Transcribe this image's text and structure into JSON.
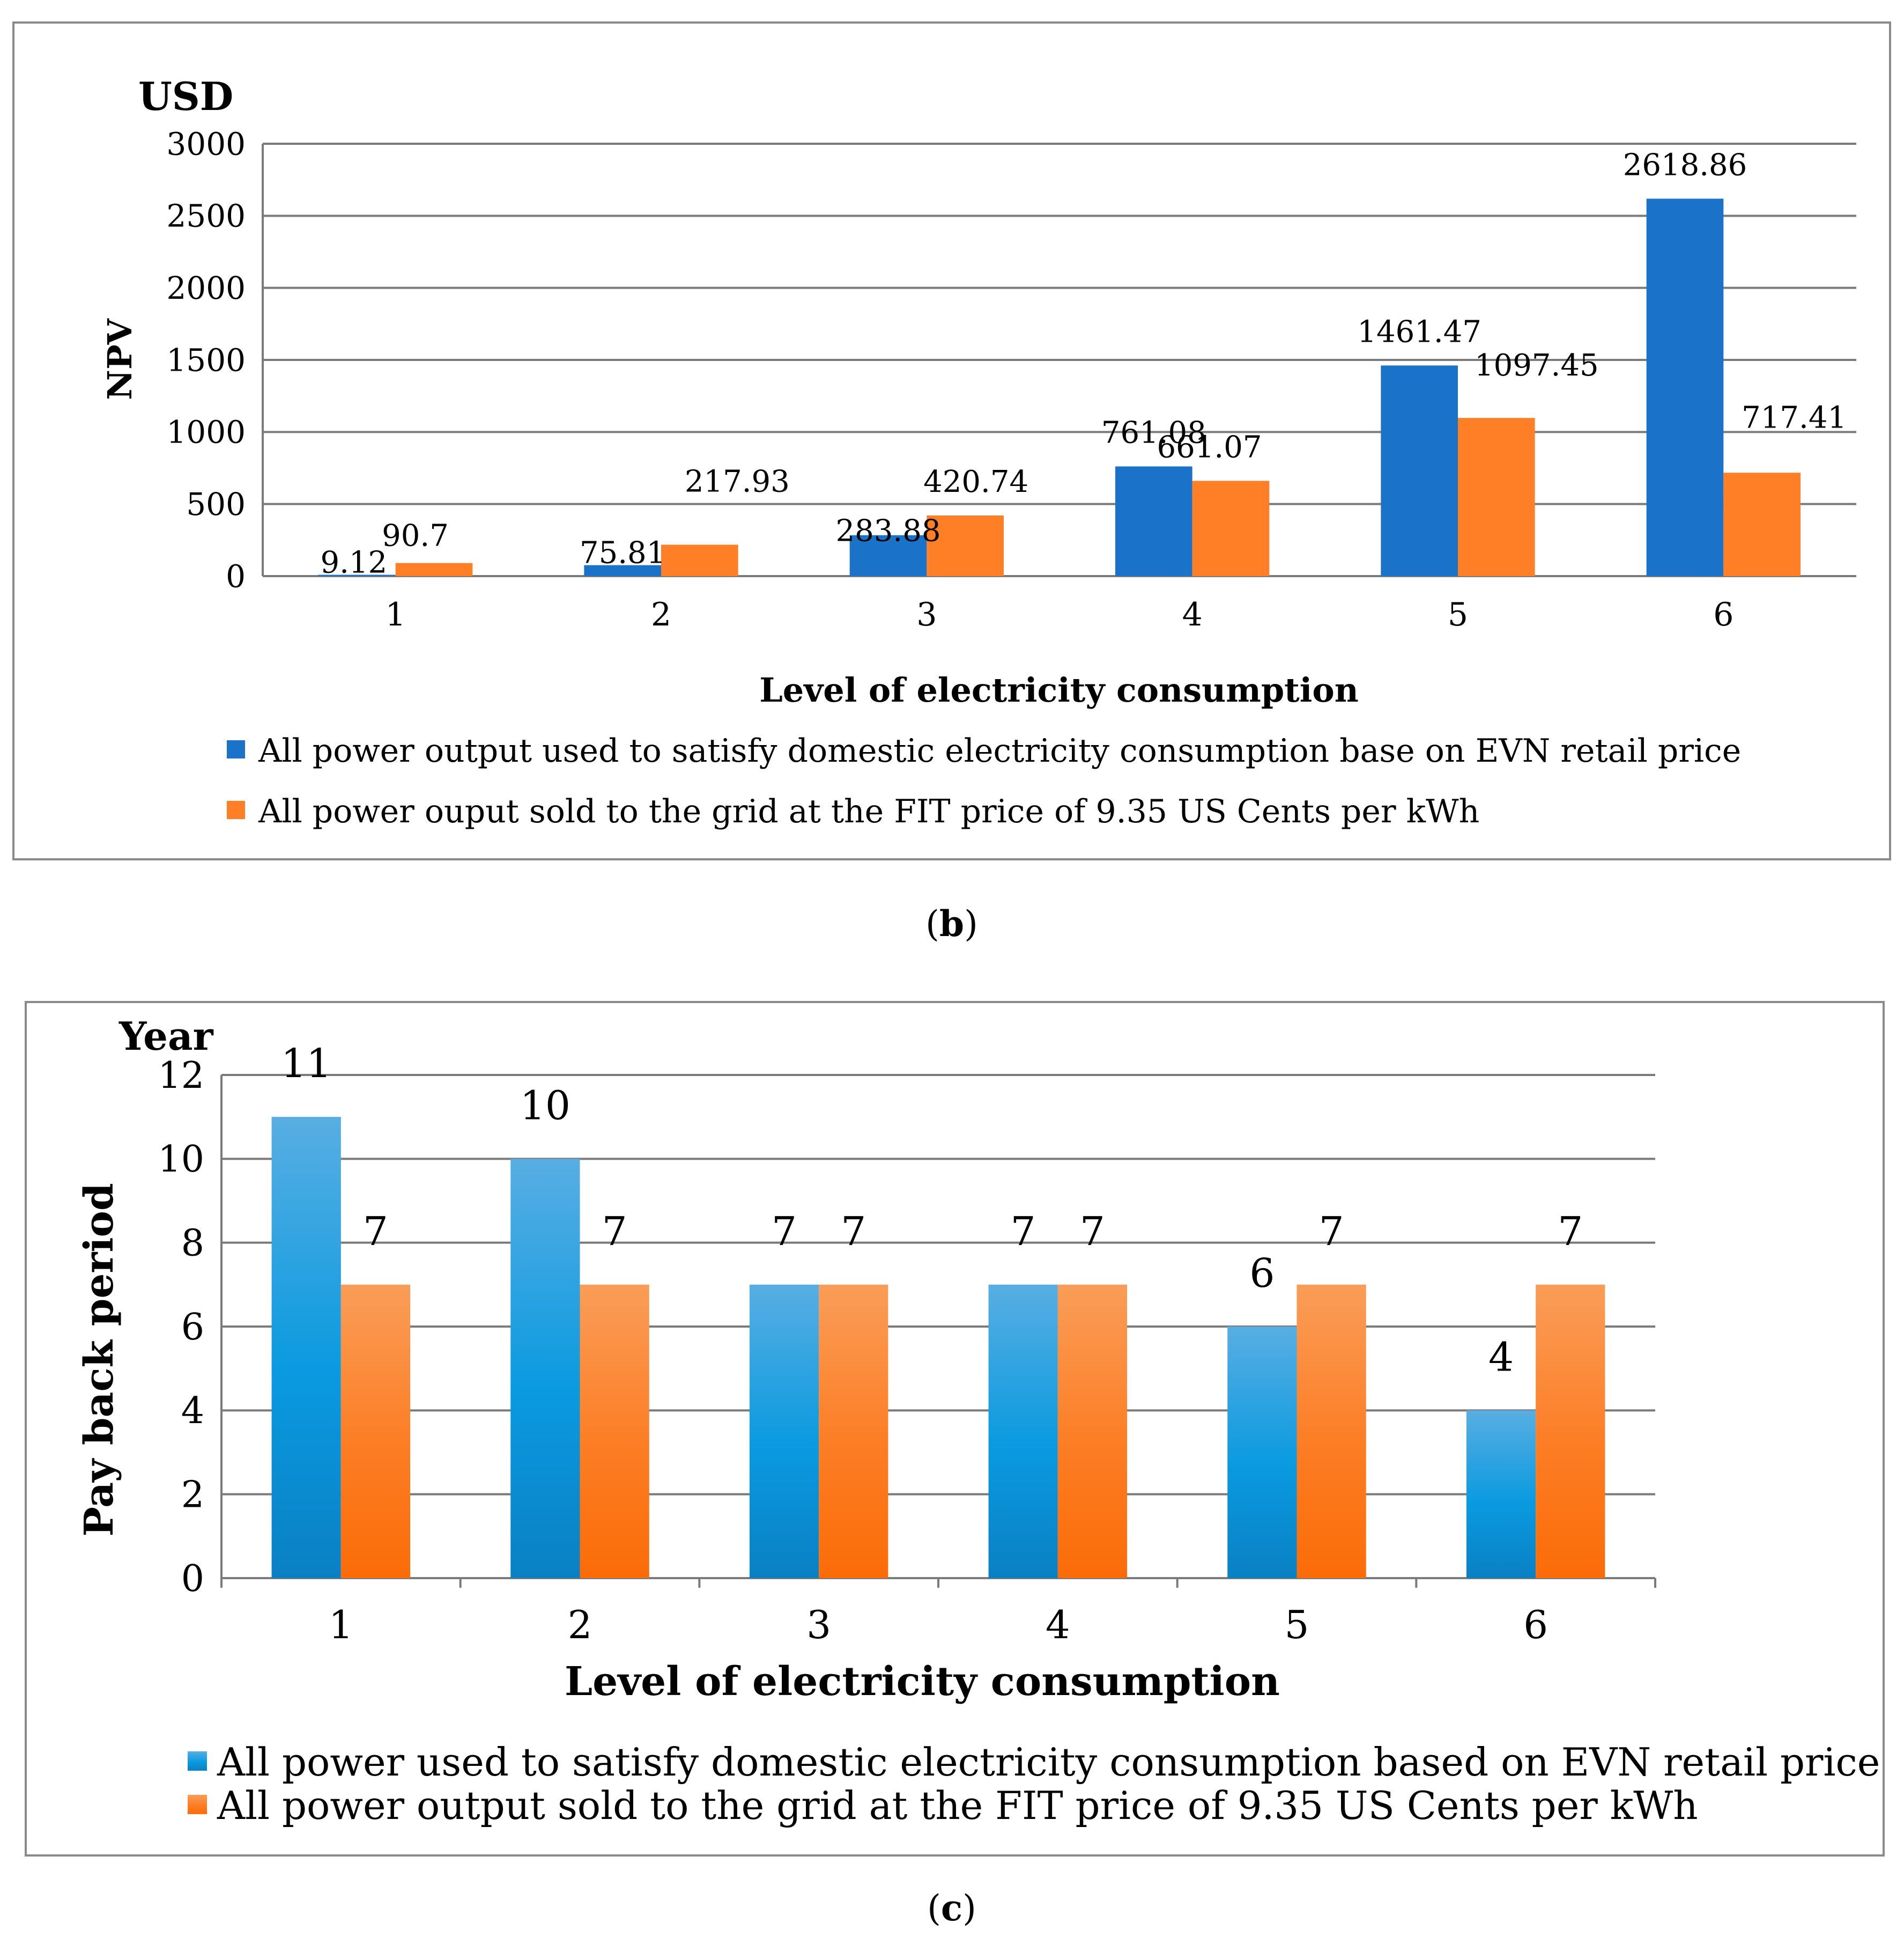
{
  "colors": {
    "series_a": "#1a73c8",
    "series_b": "#ff7f27",
    "series_a_grad_top": "#58aee2",
    "series_a_grad_mid": "#0a9ae0",
    "series_a_grad_bot": "#0a80c4",
    "series_b_grad_top": "#fa9d58",
    "series_b_grad_mid": "#fc7d24",
    "series_b_grad_bot": "#fb6c08",
    "grid": "#7a7a7a",
    "frame": "#8a8a8a"
  },
  "chart_data": [
    {
      "type": "bar",
      "panel_caption_open": "(",
      "panel_caption_letter": "b",
      "panel_caption_close": ")",
      "title": "",
      "unit_label": "USD",
      "ylabel": "NPV",
      "xlabel": "Level of electricity consumption",
      "ylim": [
        0,
        3000
      ],
      "yticks": [
        0,
        500,
        1000,
        1500,
        2000,
        2500,
        3000
      ],
      "categories": [
        "1",
        "2",
        "3",
        "4",
        "5",
        "6"
      ],
      "grid": true,
      "legend_position": "bottom",
      "series": [
        {
          "name": "All power output used to satisfy domestic electricity consumption base on EVN retail price",
          "values": [
            9.12,
            75.81,
            283.88,
            761.08,
            1461.47,
            2618.86
          ],
          "labels": [
            "9.12",
            "75.81",
            "283.88",
            "761.08",
            "1461.47",
            "2618.86"
          ]
        },
        {
          "name": "All power ouput sold to the grid at the FIT price of 9.35 US Cents per kWh",
          "values": [
            90.7,
            217.93,
            420.74,
            661.07,
            1097.45,
            717.41
          ],
          "labels": [
            "90.7",
            "217.93",
            "420.74",
            "661.07",
            "1097.45",
            "717.41"
          ]
        }
      ]
    },
    {
      "type": "bar",
      "panel_caption_open": "(",
      "panel_caption_letter": "c",
      "panel_caption_close": ")",
      "title": "",
      "unit_label": "Year",
      "ylabel": "Pay back period",
      "xlabel": "Level of electricity consumption",
      "ylim": [
        0,
        12
      ],
      "yticks": [
        0,
        2,
        4,
        6,
        8,
        10,
        12
      ],
      "categories": [
        "1",
        "2",
        "3",
        "4",
        "5",
        "6"
      ],
      "grid": true,
      "legend_position": "bottom",
      "series": [
        {
          "name": "All power used to satisfy domestic electricity consumption based on EVN retail price",
          "values": [
            11,
            10,
            7,
            7,
            6,
            4
          ],
          "labels": [
            "11",
            "10",
            "7",
            "7",
            "6",
            "4"
          ]
        },
        {
          "name": "All power output sold to the grid at the FIT price of 9.35 US Cents per kWh",
          "values": [
            7,
            7,
            7,
            7,
            7,
            7
          ],
          "labels": [
            "7",
            "7",
            "7",
            "7",
            "7",
            "7"
          ]
        }
      ]
    }
  ]
}
